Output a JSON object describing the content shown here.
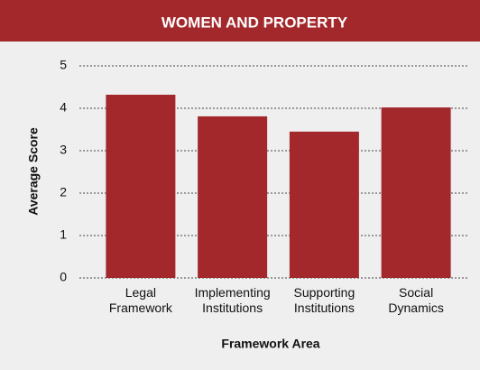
{
  "chart_data": {
    "type": "bar",
    "title": "WOMEN AND PROPERTY",
    "y_label": "Average Score",
    "x_label": "Framework Area",
    "categories": [
      "Legal Framework",
      "Implementing Institutions",
      "Supporting Institutions",
      "Social Dynamics"
    ],
    "values": [
      4.32,
      3.81,
      3.45,
      4.02
    ],
    "color": "#a3282b",
    "ylim": [
      0,
      5
    ],
    "yticks": [
      0,
      1,
      2,
      3,
      4,
      5
    ],
    "grid": true
  }
}
